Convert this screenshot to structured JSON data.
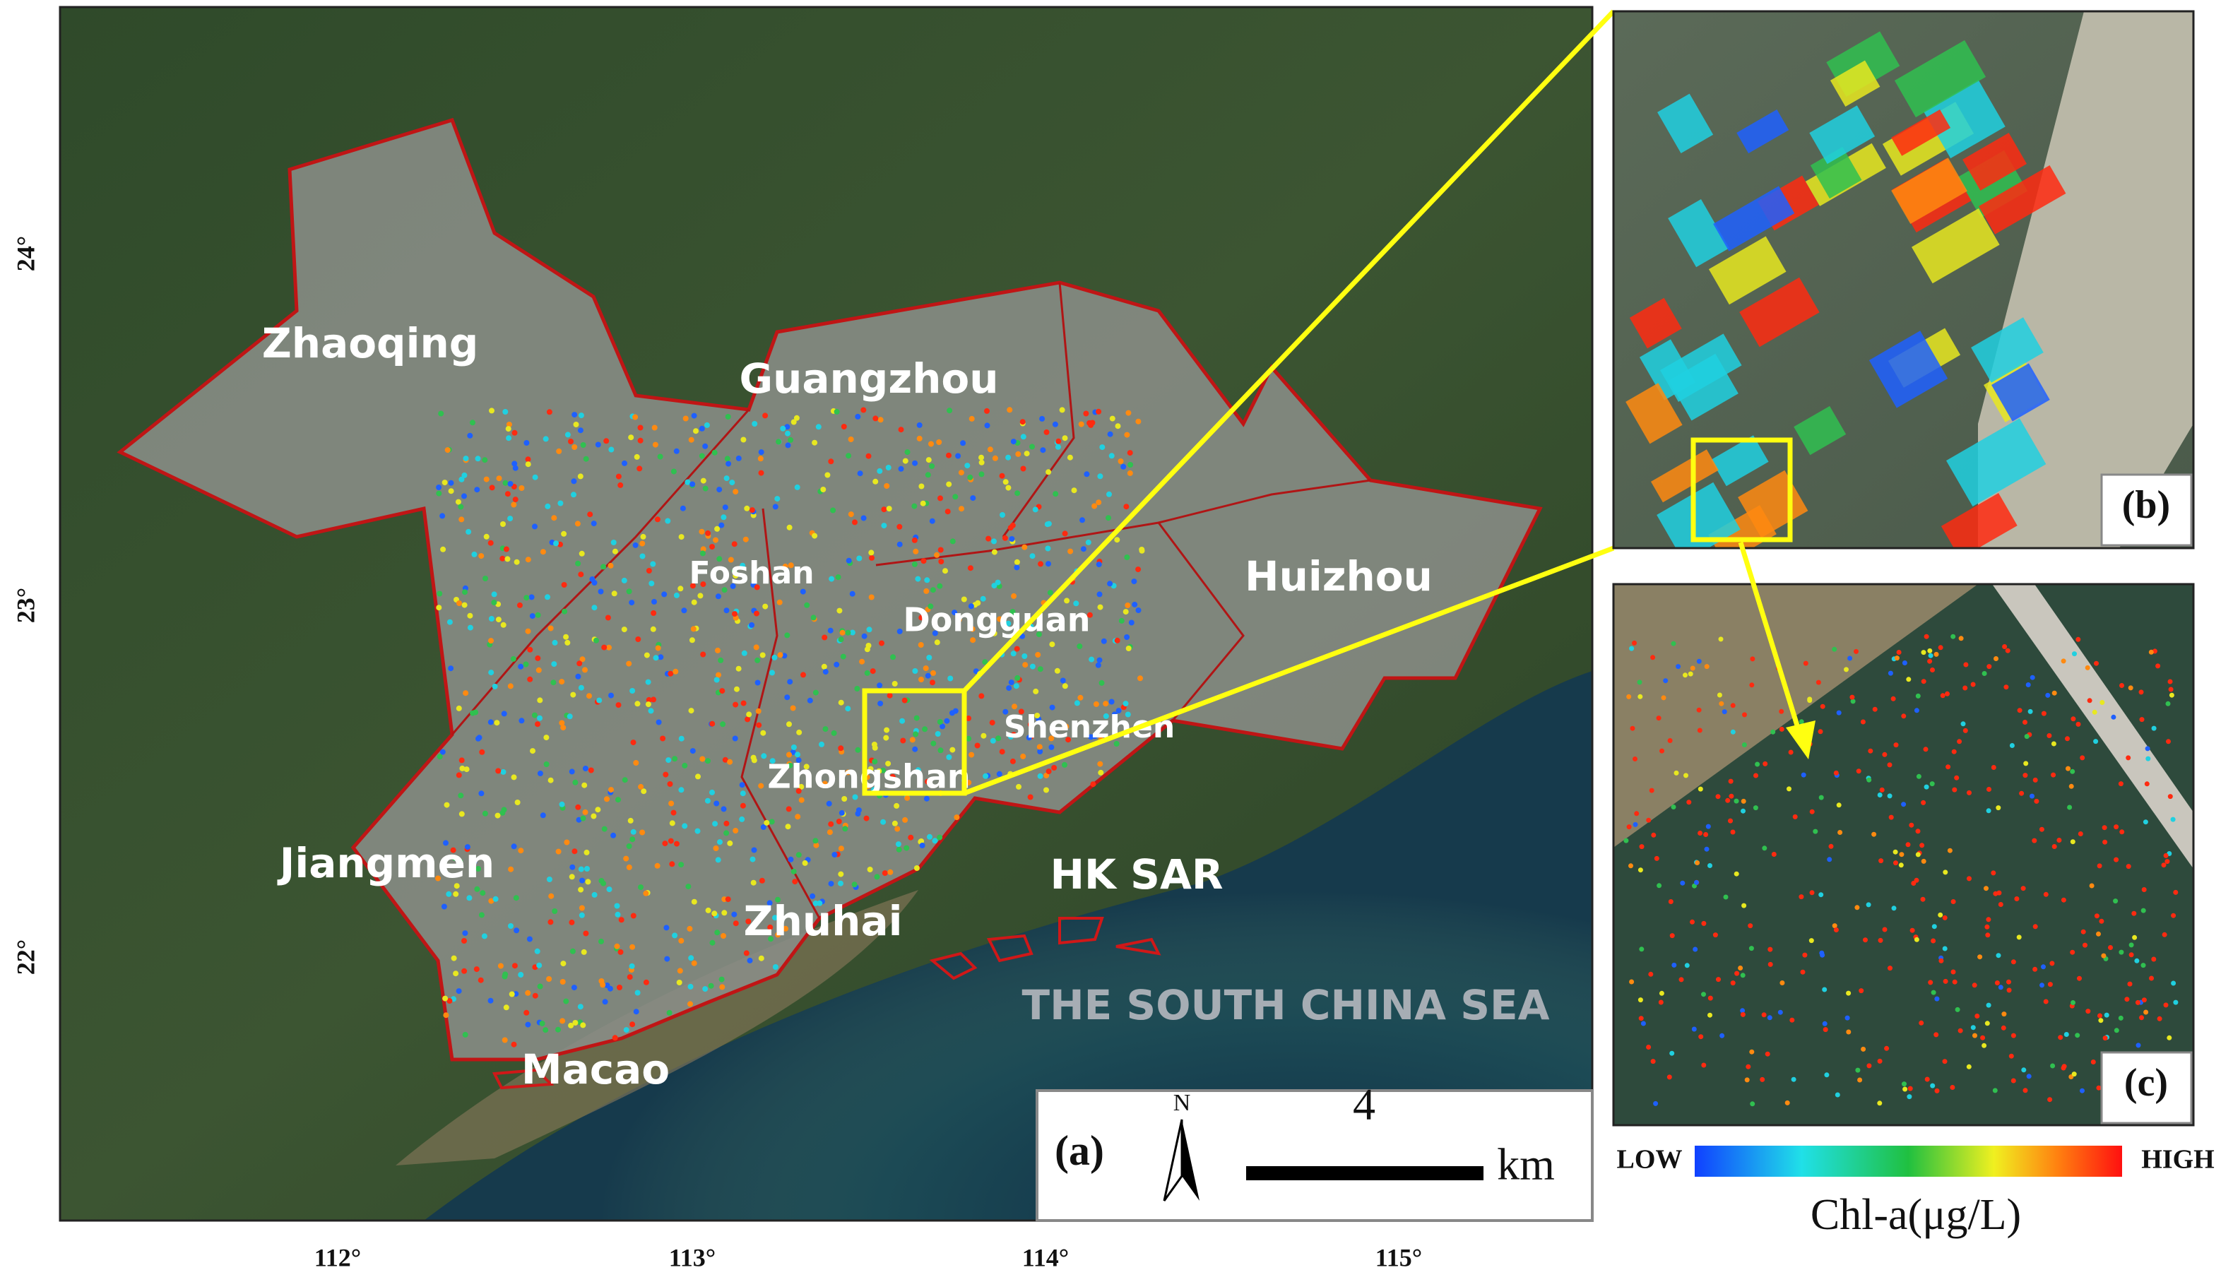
{
  "map": {
    "regions": [
      "Zhaoqing",
      "Guangzhou",
      "Foshan",
      "Dongguan",
      "Huizhou",
      "Shenzhen",
      "Zhongshan",
      "Jiangmen",
      "Zhuhai",
      "HK SAR",
      "Macao"
    ],
    "sea_label": "THE SOUTH CHINA SEA",
    "latitude_ticks": [
      "24°",
      "23°",
      "22°"
    ],
    "longitude_ticks": [
      "112°",
      "113°",
      "114°",
      "115°"
    ]
  },
  "panels": [
    "(a)",
    "(b)",
    "(c)"
  ],
  "scale_bar": {
    "value": "4",
    "unit": "km"
  },
  "north": "N",
  "legend": {
    "low": "LOW",
    "high": "HIGH",
    "title": "Chl-a(μg/L)"
  }
}
